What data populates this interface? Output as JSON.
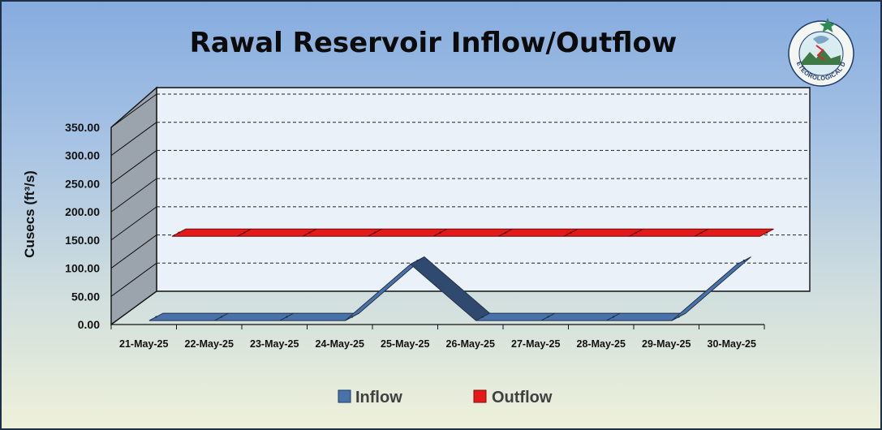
{
  "chart_data": {
    "type": "line",
    "title": "Rawal Reservoir Inflow/Outflow",
    "ylabel": "Cusecs (ft³/s)",
    "xlabel": "",
    "ylim": [
      0,
      350
    ],
    "yticks": [
      "0.00",
      "50.00",
      "100.00",
      "150.00",
      "200.00",
      "250.00",
      "300.00",
      "350.00"
    ],
    "categories": [
      "21-May-25",
      "22-May-25",
      "23-May-25",
      "24-May-25",
      "25-May-25",
      "26-May-25",
      "27-May-25",
      "28-May-25",
      "29-May-25",
      "30-May-25"
    ],
    "series": [
      {
        "name": "Inflow",
        "color": "#4a72aa",
        "values": [
          0,
          0,
          0,
          0,
          100,
          0,
          0,
          0,
          0,
          100
        ]
      },
      {
        "name": "Outflow",
        "color": "#e41a1a",
        "values": [
          120,
          120,
          120,
          120,
          120,
          120,
          120,
          120,
          120,
          120
        ]
      }
    ],
    "grid": true,
    "gridlines": "dashed-horizontal",
    "style": "3d-line",
    "legend_position": "bottom"
  },
  "logo": {
    "name": "pmd-logo-icon",
    "text": "PAKISTAN METEOROLOGICAL DEPARTMENT",
    "star_color": "#2e8b57"
  },
  "colors": {
    "plot_back_wall": "#eaf1f8",
    "plot_side_wall": "#9ba3ad",
    "gridline": "#222222"
  }
}
